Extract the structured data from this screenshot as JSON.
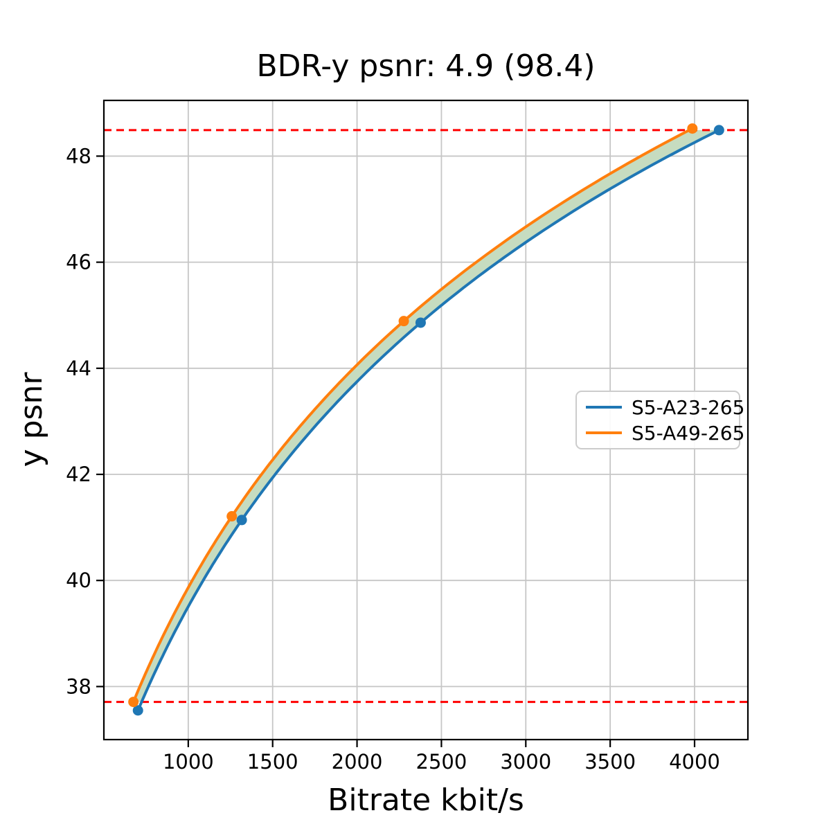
{
  "title": "BDR-y psnr: 4.9 (98.4)",
  "xlabel": "Bitrate kbit/s",
  "ylabel": "y psnr",
  "colors": {
    "background": "#ffffff",
    "spine": "#000000",
    "grid": "#c6c6c6",
    "series_blue": "#1f77b4",
    "series_orange": "#ff7f0e",
    "reference_red": "#ff0000",
    "fill_green": "#c6dcc0",
    "legend_border": "#cccccc",
    "legend_background": "rgba(255,255,255,0.9)"
  },
  "chart_data": {
    "type": "line",
    "title": "BDR-y psnr: 4.9 (98.4)",
    "xlabel": "Bitrate kbit/s",
    "ylabel": "y psnr",
    "xlim": [
      500,
      4316
    ],
    "ylim": [
      37.0,
      49.05
    ],
    "xticks": [
      1000,
      1500,
      2000,
      2500,
      3000,
      3500,
      4000
    ],
    "yticks": [
      38,
      40,
      42,
      44,
      46,
      48
    ],
    "grid": true,
    "interpolation": "cubic-in-log-bitrate",
    "legend_position": "center-right",
    "series": [
      {
        "name": "S5-A23-265",
        "color": "#1f77b4",
        "x": [
          702,
          1317,
          2377,
          4145
        ],
        "y": [
          37.55,
          41.14,
          44.86,
          48.49
        ]
      },
      {
        "name": "S5-A49-265",
        "color": "#ff7f0e",
        "x": [
          675,
          1258,
          2277,
          3987
        ],
        "y": [
          37.71,
          41.21,
          44.89,
          48.52
        ]
      }
    ],
    "reference_lines": {
      "style": "dashed",
      "color": "#ff0000",
      "y_values": [
        37.71,
        48.49
      ],
      "meaning": "BD overlap interval bounds"
    },
    "fill_between": {
      "color": "#c6dcc0",
      "between": [
        "S5-A49-265",
        "S5-A23-265"
      ],
      "y_range": [
        37.71,
        48.49
      ]
    },
    "bdr_value": "4.9",
    "bdr_percent_overlap": "98.4"
  }
}
